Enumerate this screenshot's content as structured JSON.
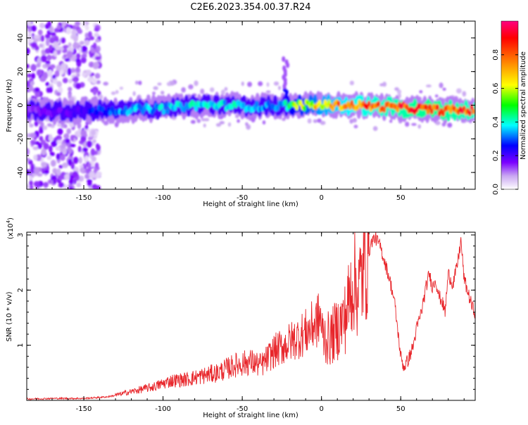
{
  "title": "C2E6.2023.354.00.37.R24",
  "chart_data": [
    {
      "type": "heatmap",
      "xlabel": "Height of straight line (km)",
      "ylabel": "Frequency (Hz)",
      "xlim": [
        -186,
        97
      ],
      "ylim": [
        -50,
        50
      ],
      "x_ticks": [
        "-150",
        "-100",
        "-50",
        "0",
        "50"
      ],
      "y_ticks": [
        "-40",
        "-20",
        "0",
        "20",
        "40"
      ],
      "colorbar": {
        "label": "Normalized spectral amplitude",
        "ticks": [
          "0.0",
          "0.2",
          "0.4",
          "0.6",
          "0.8"
        ],
        "range": [
          0,
          1
        ]
      },
      "ridge": [
        {
          "x": -186,
          "f": -3,
          "amp": 0.15
        },
        {
          "x": -160,
          "f": -4,
          "amp": 0.2
        },
        {
          "x": -140,
          "f": -3,
          "amp": 0.3
        },
        {
          "x": -130,
          "f": -3,
          "amp": 0.35
        },
        {
          "x": -100,
          "f": -2,
          "amp": 0.4
        },
        {
          "x": -80,
          "f": 0,
          "amp": 0.42
        },
        {
          "x": -60,
          "f": 0,
          "amp": 0.42
        },
        {
          "x": -40,
          "f": -1,
          "amp": 0.38
        },
        {
          "x": -25,
          "f": 0,
          "amp": 0.32
        },
        {
          "x": -20,
          "f": 0,
          "amp": 0.55
        },
        {
          "x": 0,
          "f": 0,
          "amp": 0.75
        },
        {
          "x": 20,
          "f": 0,
          "amp": 0.85
        },
        {
          "x": 40,
          "f": -1,
          "amp": 0.9
        },
        {
          "x": 60,
          "f": -2,
          "amp": 0.95
        },
        {
          "x": 75,
          "f": -3,
          "amp": 0.95
        },
        {
          "x": 97,
          "f": -3,
          "amp": 0.9
        }
      ]
    },
    {
      "type": "line",
      "xlabel": "Height of straight line (km)",
      "ylabel": "SNR (10 * v/v)",
      "y_multiplier": "(x10",
      "y_multiplier_exp": "4",
      "y_multiplier_close": ")",
      "xlim": [
        -186,
        97
      ],
      "ylim": [
        0,
        3.05
      ],
      "x_ticks": [
        "-150",
        "-100",
        "-50",
        "0",
        "50"
      ],
      "y_ticks": [
        "1",
        "2",
        "3"
      ],
      "series": [
        {
          "color": "#e8262b",
          "x": [
            -186,
            -170,
            -150,
            -135,
            -125,
            -115,
            -105,
            -95,
            -85,
            -75,
            -65,
            -55,
            -45,
            -38,
            -30,
            -22,
            -15,
            -8,
            0,
            5,
            10,
            15,
            18,
            20,
            23,
            27,
            30,
            32,
            34,
            37,
            40,
            43,
            46,
            48,
            50,
            52,
            55,
            58,
            60,
            63,
            66,
            68,
            70,
            72,
            74,
            76,
            78,
            80,
            83,
            86,
            88,
            90,
            92,
            95,
            97
          ],
          "y": [
            0.01,
            0.02,
            0.02,
            0.05,
            0.1,
            0.15,
            0.2,
            0.28,
            0.3,
            0.35,
            0.4,
            0.5,
            0.55,
            0.5,
            0.7,
            0.8,
            0.9,
            1.0,
            1.2,
            1.1,
            1.3,
            1.5,
            1.9,
            2.2,
            2.0,
            2.4,
            2.7,
            2.9,
            2.95,
            2.8,
            2.5,
            2.2,
            1.8,
            1.3,
            0.8,
            0.6,
            0.75,
            1.0,
            1.3,
            1.6,
            2.05,
            2.3,
            2.05,
            2.2,
            1.9,
            1.8,
            1.6,
            2.3,
            2.1,
            2.5,
            2.9,
            2.2,
            2.0,
            1.7,
            1.6
          ]
        }
      ]
    }
  ]
}
